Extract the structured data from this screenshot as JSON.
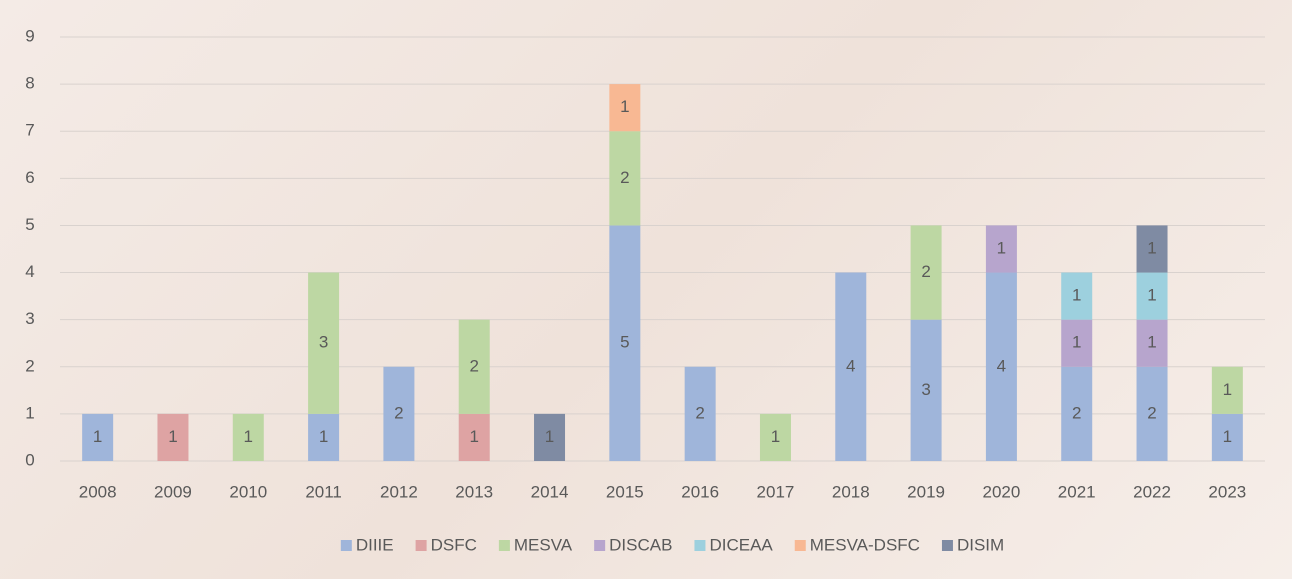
{
  "chart_data": {
    "type": "stacked-bar",
    "categories": [
      "2008",
      "2009",
      "2010",
      "2011",
      "2012",
      "2013",
      "2014",
      "2015",
      "2016",
      "2017",
      "2018",
      "2019",
      "2020",
      "2021",
      "2022",
      "2023"
    ],
    "series": [
      {
        "name": "DIIIE",
        "color": "#9fb5da",
        "values": [
          1,
          null,
          null,
          1,
          2,
          null,
          null,
          5,
          2,
          null,
          4,
          3,
          4,
          2,
          2,
          1
        ]
      },
      {
        "name": "DSFC",
        "color": "#dea3a3",
        "values": [
          null,
          1,
          null,
          null,
          null,
          1,
          null,
          null,
          null,
          null,
          null,
          null,
          null,
          null,
          null,
          null
        ]
      },
      {
        "name": "MESVA",
        "color": "#bdd7a3",
        "values": [
          null,
          null,
          1,
          3,
          null,
          2,
          null,
          2,
          null,
          1,
          null,
          2,
          null,
          null,
          null,
          1
        ]
      },
      {
        "name": "DISCAB",
        "color": "#b7a5cd",
        "values": [
          null,
          null,
          null,
          null,
          null,
          null,
          null,
          null,
          null,
          null,
          null,
          null,
          1,
          1,
          1,
          null
        ]
      },
      {
        "name": "DICEAA",
        "color": "#9dd0de",
        "values": [
          null,
          null,
          null,
          null,
          null,
          null,
          null,
          null,
          null,
          null,
          null,
          null,
          null,
          1,
          1,
          null
        ]
      },
      {
        "name": "MESVA-DSFC",
        "color": "#f8b893",
        "values": [
          null,
          null,
          null,
          null,
          null,
          null,
          null,
          1,
          null,
          null,
          null,
          null,
          null,
          null,
          null,
          null
        ]
      },
      {
        "name": "DISIM",
        "color": "#7f8ba3",
        "values": [
          null,
          null,
          null,
          null,
          null,
          null,
          1,
          null,
          null,
          null,
          null,
          null,
          null,
          null,
          1,
          null
        ]
      }
    ],
    "ylim": [
      0,
      9
    ],
    "yticks": [
      0,
      1,
      2,
      3,
      4,
      5,
      6,
      7,
      8,
      9
    ],
    "grid": true,
    "legend": "bottom"
  }
}
